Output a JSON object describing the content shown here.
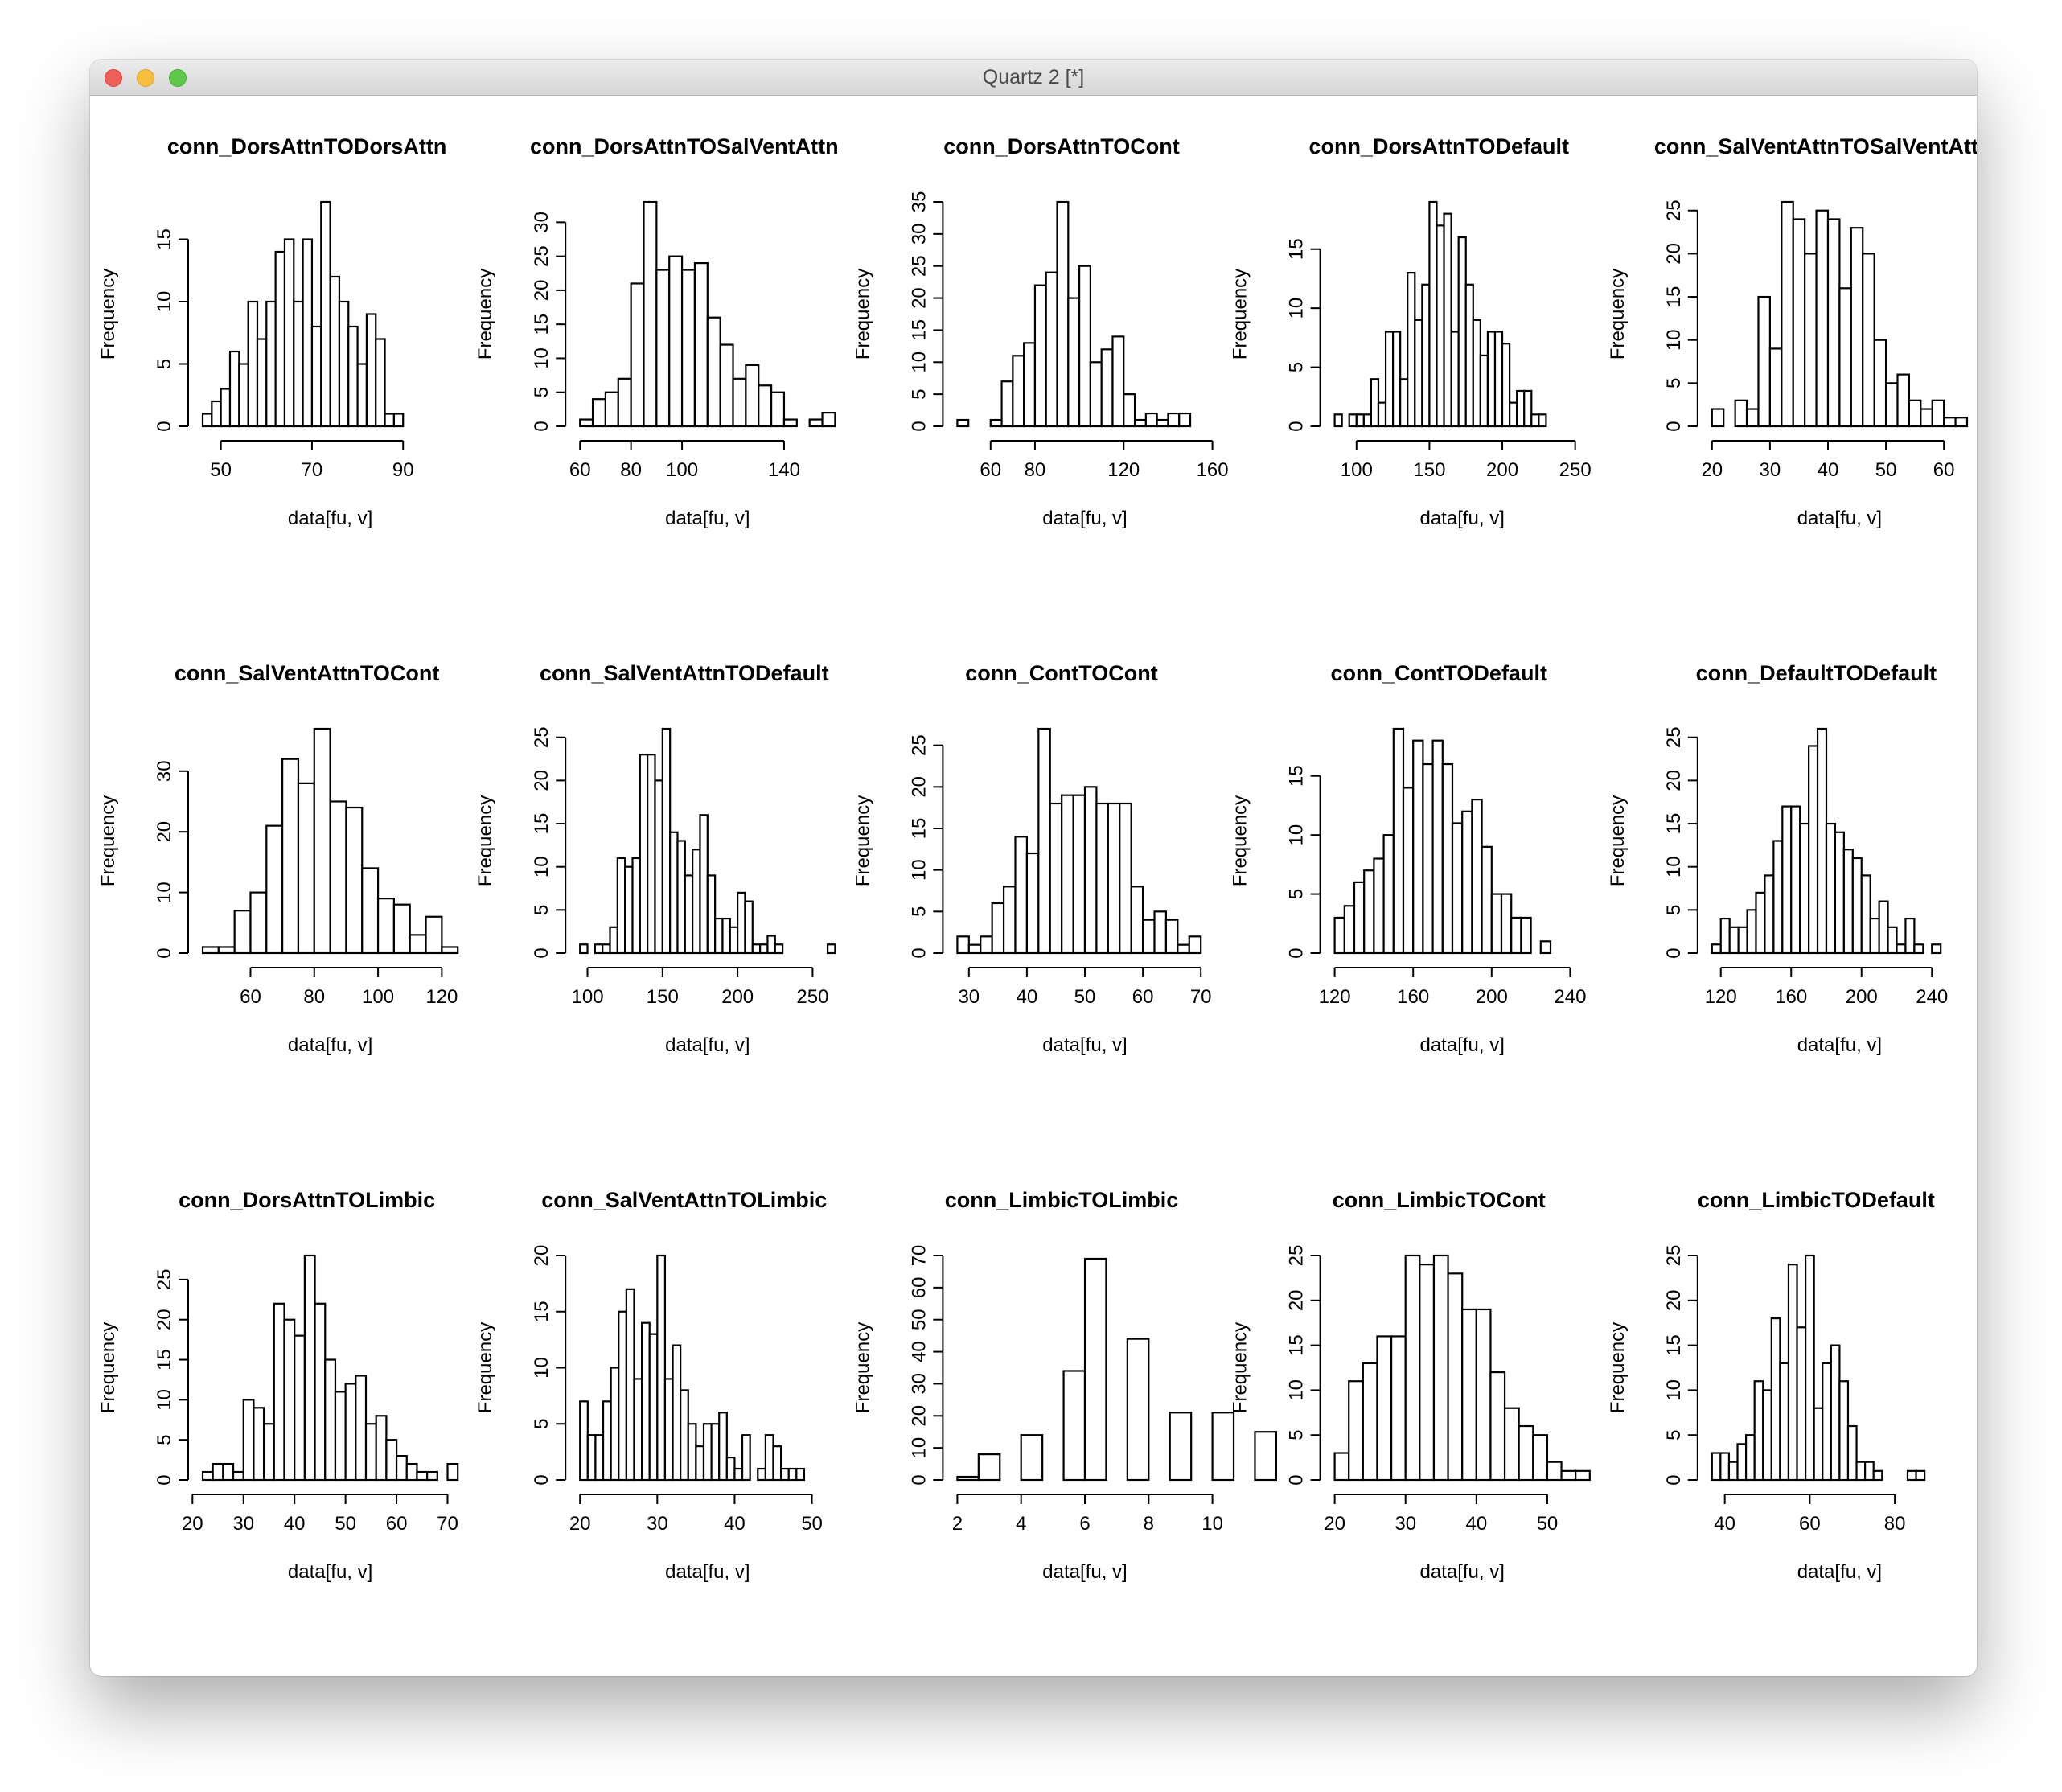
{
  "window": {
    "title": "Quartz 2 [*]"
  },
  "chart_data": [
    {
      "type": "bar",
      "title": "conn_DorsAttnTODorsAttn",
      "xlabel": "data[fu, v]",
      "ylabel": "Frequency",
      "bin_start": 46,
      "bin_width": 2,
      "counts": [
        1,
        2,
        3,
        6,
        5,
        10,
        7,
        10,
        14,
        15,
        10,
        15,
        8,
        18,
        12,
        10,
        8,
        5,
        9,
        7,
        1,
        1
      ],
      "xticks": [
        50,
        70,
        90
      ],
      "yticks": [
        0,
        5,
        10,
        15
      ],
      "xlim": [
        46,
        102
      ],
      "ylim": [
        0,
        18
      ]
    },
    {
      "type": "bar",
      "title": "conn_DorsAttnTOSalVentAttn",
      "xlabel": "data[fu, v]",
      "ylabel": "Frequency",
      "bin_start": 60,
      "bin_width": 5,
      "counts": [
        1,
        4,
        5,
        7,
        21,
        33,
        23,
        25,
        23,
        24,
        16,
        12,
        7,
        9,
        6,
        5,
        1,
        0,
        1,
        2
      ],
      "xticks": [
        60,
        80,
        100,
        140
      ],
      "yticks": [
        0,
        5,
        10,
        15,
        20,
        25,
        30
      ],
      "xlim": [
        60,
        160
      ],
      "ylim": [
        0,
        33
      ]
    },
    {
      "type": "bar",
      "title": "conn_DorsAttnTOCont",
      "xlabel": "data[fu, v]",
      "ylabel": "Frequency",
      "bin_start": 45,
      "bin_width": 5,
      "counts": [
        1,
        0,
        0,
        1,
        7,
        11,
        13,
        22,
        24,
        35,
        20,
        25,
        10,
        12,
        14,
        5,
        1,
        2,
        1,
        2,
        2
      ],
      "xticks": [
        60,
        80,
        120,
        160
      ],
      "yticks": [
        0,
        5,
        10,
        15,
        20,
        25,
        30,
        35
      ],
      "xlim": [
        45,
        160
      ],
      "ylim": [
        0,
        35
      ]
    },
    {
      "type": "bar",
      "title": "conn_DorsAttnTODefault",
      "xlabel": "data[fu, v]",
      "ylabel": "Frequency",
      "bin_start": 85,
      "bin_width": 5,
      "counts": [
        1,
        0,
        1,
        1,
        1,
        4,
        2,
        8,
        8,
        4,
        13,
        9,
        12,
        19,
        17,
        18,
        8,
        16,
        12,
        9,
        6,
        8,
        8,
        7,
        2,
        3,
        3,
        1,
        1
      ],
      "xticks": [
        100,
        150,
        200,
        250
      ],
      "yticks": [
        0,
        5,
        10,
        15
      ],
      "xlim": [
        85,
        260
      ],
      "ylim": [
        0,
        19
      ]
    },
    {
      "type": "bar",
      "title": "conn_SalVentAttnTOSalVentAtt",
      "xlabel": "data[fu, v]",
      "ylabel": "Frequency",
      "bin_start": 20,
      "bin_width": 2,
      "counts": [
        2,
        0,
        3,
        2,
        15,
        9,
        26,
        24,
        20,
        25,
        24,
        16,
        23,
        20,
        10,
        5,
        6,
        3,
        2,
        3,
        1,
        1
      ],
      "xticks": [
        20,
        30,
        40,
        50,
        60
      ],
      "yticks": [
        0,
        5,
        10,
        15,
        20,
        25
      ],
      "xlim": [
        20,
        64
      ],
      "ylim": [
        0,
        26
      ]
    },
    {
      "type": "bar",
      "title": "conn_SalVentAttnTOCont",
      "xlabel": "data[fu, v]",
      "ylabel": "Frequency",
      "bin_start": 45,
      "bin_width": 5,
      "counts": [
        1,
        1,
        7,
        10,
        21,
        32,
        28,
        37,
        25,
        24,
        14,
        9,
        8,
        3,
        6,
        1
      ],
      "xticks": [
        60,
        80,
        100,
        120
      ],
      "yticks": [
        0,
        10,
        20,
        30
      ],
      "xlim": [
        45,
        125
      ],
      "ylim": [
        0,
        37
      ]
    },
    {
      "type": "bar",
      "title": "conn_SalVentAttnTODefault",
      "xlabel": "data[fu, v]",
      "ylabel": "Frequency",
      "bin_start": 95,
      "bin_width": 5,
      "counts": [
        1,
        0,
        1,
        1,
        3,
        11,
        10,
        11,
        23,
        23,
        20,
        26,
        14,
        13,
        9,
        12,
        16,
        9,
        4,
        4,
        3,
        7,
        6,
        1,
        1,
        2,
        1,
        0,
        0,
        0,
        0,
        0,
        0,
        1
      ],
      "xticks": [
        100,
        150,
        200,
        250
      ],
      "yticks": [
        0,
        5,
        10,
        15,
        20,
        25
      ],
      "xlim": [
        95,
        265
      ],
      "ylim": [
        0,
        26
      ]
    },
    {
      "type": "bar",
      "title": "conn_ContTOCont",
      "xlabel": "data[fu, v]",
      "ylabel": "Frequency",
      "bin_start": 28,
      "bin_width": 2,
      "counts": [
        2,
        1,
        2,
        6,
        8,
        14,
        12,
        27,
        18,
        19,
        19,
        20,
        18,
        18,
        18,
        8,
        4,
        5,
        4,
        1,
        2
      ],
      "xticks": [
        30,
        40,
        50,
        60,
        70
      ],
      "yticks": [
        0,
        5,
        10,
        15,
        20,
        25
      ],
      "xlim": [
        28,
        72
      ],
      "ylim": [
        0,
        27
      ]
    },
    {
      "type": "bar",
      "title": "conn_ContTODefault",
      "xlabel": "data[fu, v]",
      "ylabel": "Frequency",
      "bin_start": 120,
      "bin_width": 5,
      "counts": [
        3,
        4,
        6,
        7,
        8,
        10,
        19,
        14,
        18,
        16,
        18,
        16,
        11,
        12,
        13,
        9,
        5,
        5,
        3,
        3,
        0,
        1
      ],
      "xticks": [
        120,
        160,
        200,
        240
      ],
      "yticks": [
        0,
        5,
        10,
        15
      ],
      "xlim": [
        120,
        250
      ],
      "ylim": [
        0,
        19
      ]
    },
    {
      "type": "bar",
      "title": "conn_DefaultTODefault",
      "xlabel": "data[fu, v]",
      "ylabel": "Frequency",
      "bin_start": 115,
      "bin_width": 5,
      "counts": [
        1,
        4,
        3,
        3,
        5,
        7,
        9,
        13,
        17,
        17,
        15,
        24,
        26,
        15,
        14,
        12,
        11,
        9,
        4,
        6,
        3,
        1,
        4,
        1,
        0,
        1
      ],
      "xticks": [
        120,
        160,
        200,
        240
      ],
      "yticks": [
        0,
        5,
        10,
        15,
        20,
        25
      ],
      "xlim": [
        115,
        260
      ],
      "ylim": [
        0,
        26
      ]
    },
    {
      "type": "bar",
      "title": "conn_DorsAttnTOLimbic",
      "xlabel": "data[fu, v]",
      "ylabel": "Frequency",
      "bin_start": 22,
      "bin_width": 2,
      "counts": [
        1,
        2,
        2,
        1,
        10,
        9,
        7,
        22,
        20,
        18,
        28,
        22,
        15,
        11,
        12,
        13,
        7,
        8,
        5,
        3,
        2,
        1,
        1,
        0,
        2
      ],
      "xticks": [
        20,
        30,
        40,
        50,
        60,
        70
      ],
      "yticks": [
        0,
        5,
        10,
        15,
        20,
        25
      ],
      "xlim": [
        22,
        72
      ],
      "ylim": [
        0,
        28
      ]
    },
    {
      "type": "bar",
      "title": "conn_SalVentAttnTOLimbic",
      "xlabel": "data[fu, v]",
      "ylabel": "Frequency",
      "bin_start": 20,
      "bin_width": 1,
      "counts": [
        7,
        4,
        4,
        7,
        10,
        15,
        17,
        9,
        14,
        13,
        20,
        9,
        12,
        8,
        5,
        3,
        5,
        5,
        6,
        2,
        1,
        4,
        0,
        1,
        4,
        3,
        1,
        1,
        1
      ],
      "xticks": [
        20,
        30,
        40,
        50
      ],
      "yticks": [
        0,
        5,
        10,
        15,
        20
      ],
      "xlim": [
        20,
        53
      ],
      "ylim": [
        0,
        20
      ]
    },
    {
      "type": "bar",
      "title": "conn_LimbicTOLimbic",
      "xlabel": "data[fu, v]",
      "ylabel": "Frequency",
      "bin_start": 2,
      "bin_width": 0.6666667,
      "counts": [
        1,
        8,
        0,
        14,
        0,
        34,
        69,
        0,
        44,
        0,
        21,
        0,
        21,
        0,
        15
      ],
      "xticks": [
        2,
        4,
        6,
        8,
        10
      ],
      "yticks": [
        0,
        10,
        20,
        30,
        40,
        50,
        60,
        70
      ],
      "xlim": [
        2,
        10
      ],
      "ylim": [
        0,
        70
      ]
    },
    {
      "type": "bar",
      "title": "conn_LimbicTOCont",
      "xlabel": "data[fu, v]",
      "ylabel": "Frequency",
      "bin_start": 20,
      "bin_width": 2,
      "counts": [
        3,
        11,
        13,
        16,
        16,
        25,
        24,
        25,
        23,
        19,
        19,
        12,
        8,
        6,
        5,
        2,
        1,
        1
      ],
      "xticks": [
        20,
        30,
        40,
        50
      ],
      "yticks": [
        0,
        5,
        10,
        15,
        20,
        25
      ],
      "xlim": [
        20,
        56
      ],
      "ylim": [
        0,
        25
      ]
    },
    {
      "type": "bar",
      "title": "conn_LimbicTODefault",
      "xlabel": "data[fu, v]",
      "ylabel": "Frequency",
      "bin_start": 37,
      "bin_width": 2,
      "counts": [
        3,
        3,
        2,
        4,
        5,
        11,
        10,
        18,
        13,
        24,
        17,
        25,
        8,
        13,
        15,
        11,
        6,
        2,
        2,
        1,
        0,
        0,
        0,
        1,
        1
      ],
      "xticks": [
        40,
        60,
        80
      ],
      "yticks": [
        0,
        5,
        10,
        15,
        20,
        25
      ],
      "xlim": [
        37,
        97
      ],
      "ylim": [
        0,
        25
      ]
    }
  ]
}
